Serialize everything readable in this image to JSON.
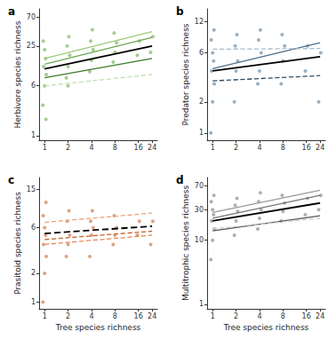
{
  "chart_data": [
    {
      "type": "scatter",
      "title": "a",
      "ylabel": "Herbivore species richness",
      "log": true,
      "grid": false,
      "xlim": [
        0.85,
        28
      ],
      "xticks": [
        1,
        2,
        4,
        8,
        16,
        24
      ],
      "ylim": [
        0.85,
        95
      ],
      "yticks": [
        1,
        6,
        25,
        70
      ],
      "series": [
        {
          "type": "scatter",
          "marker": "circle",
          "color": "#7db75e",
          "x": [
            0.95,
            1,
            1.05,
            0.97,
            1.03,
            1,
            0.96,
            1.04,
            1.9,
            2,
            2.1,
            1.95,
            2.05,
            2,
            3.8,
            4,
            4.2,
            3.9,
            4.1,
            7.6,
            8,
            8.4,
            7.8,
            15.5,
            16.5,
            23,
            24.5
          ],
          "values": [
            3,
            6,
            9,
            12,
            16,
            22,
            30,
            1.8,
            8,
            12,
            18,
            25,
            35,
            6,
            10,
            15,
            22,
            30,
            45,
            14,
            20,
            28,
            40,
            18,
            30,
            20,
            35
          ]
        },
        {
          "type": "line",
          "line_style": "solid",
          "color": "#9acd78",
          "x": [
            1,
            24
          ],
          "values": [
            16,
            42
          ]
        },
        {
          "type": "line",
          "line_style": "solid",
          "color": "#6aa84f",
          "x": [
            1,
            24
          ],
          "values": [
            13,
            34
          ]
        },
        {
          "type": "line",
          "line_style": "solid",
          "color": "#3d7a2b",
          "x": [
            1,
            24
          ],
          "values": [
            8,
            16
          ]
        },
        {
          "type": "line",
          "line_style": "dashed",
          "color": "#c3dfae",
          "x": [
            1,
            24
          ],
          "values": [
            6,
            9
          ]
        },
        {
          "type": "line",
          "line_style": "solid",
          "color": "#000000",
          "x": [
            1,
            24
          ],
          "values": [
            11,
            25
          ]
        }
      ]
    },
    {
      "type": "scatter",
      "title": "b",
      "ylabel": "Predator species richness",
      "log": true,
      "grid": false,
      "xlim": [
        0.85,
        28
      ],
      "xticks": [
        1,
        2,
        4,
        8,
        16,
        24
      ],
      "ylim": [
        0.85,
        16
      ],
      "yticks": [
        1,
        2,
        6,
        12
      ],
      "series": [
        {
          "type": "scatter",
          "marker": "circle",
          "color": "#6f8fa9",
          "x": [
            0.95,
            1,
            1.05,
            0.97,
            1.03,
            1,
            0.96,
            1.04,
            1.9,
            2,
            2.1,
            1.95,
            2.05,
            3.8,
            4,
            4.2,
            3.9,
            4.1,
            7.6,
            8,
            8.4,
            7.8,
            15.5,
            16.5,
            23,
            24.5
          ],
          "values": [
            1,
            2,
            3,
            4,
            5,
            6,
            8,
            10,
            2,
            4,
            5,
            7,
            9,
            3,
            4,
            6,
            8,
            10,
            3,
            5,
            7,
            9,
            4,
            7,
            2,
            6
          ]
        },
        {
          "type": "line",
          "line_style": "solid",
          "color": "#4f6f8a",
          "x": [
            1,
            24
          ],
          "values": [
            4.2,
            7.5
          ]
        },
        {
          "type": "line",
          "line_style": "dashed",
          "color": "#a9bccc",
          "x": [
            1,
            24
          ],
          "values": [
            6.5,
            6.6
          ]
        },
        {
          "type": "line",
          "line_style": "dashed",
          "color": "#2e4d66",
          "x": [
            1,
            24
          ],
          "values": [
            3.2,
            3.6
          ]
        },
        {
          "type": "line",
          "line_style": "solid",
          "color": "#000000",
          "x": [
            1,
            24
          ],
          "values": [
            4,
            5.5
          ]
        }
      ]
    },
    {
      "type": "scatter",
      "title": "c",
      "ylabel": "Prasitoid species richness",
      "xlabel": "Tree species richness",
      "log": true,
      "grid": false,
      "xlim": [
        0.85,
        28
      ],
      "xticks": [
        1,
        2,
        4,
        8,
        16,
        24
      ],
      "ylim": [
        0.85,
        20
      ],
      "yticks": [
        1,
        2,
        6,
        15
      ],
      "series": [
        {
          "type": "scatter",
          "marker": "circle",
          "color": "#d07a4a",
          "x": [
            0.95,
            1,
            1.05,
            0.97,
            1.03,
            1,
            0.96,
            1.04,
            1.9,
            2,
            2.1,
            1.95,
            2.05,
            3.8,
            4,
            4.2,
            3.9,
            4.1,
            7.6,
            8,
            8.4,
            7.8,
            15.5,
            16.5,
            23,
            24.5
          ],
          "values": [
            1,
            2,
            3,
            4,
            5,
            6,
            8,
            11,
            3,
            4,
            5,
            7,
            9,
            3,
            5,
            6,
            7,
            9,
            4,
            5,
            6,
            8,
            5,
            7,
            4,
            7
          ]
        },
        {
          "type": "line",
          "line_style": "dashed",
          "color": "#eba57e",
          "x": [
            1,
            24
          ],
          "values": [
            6.8,
            8.5
          ]
        },
        {
          "type": "line",
          "line_style": "dashed",
          "color": "#c0642f",
          "x": [
            1,
            24
          ],
          "values": [
            4.5,
            5.5
          ]
        },
        {
          "type": "line",
          "line_style": "dashed",
          "color": "#e08a5a",
          "x": [
            1,
            24
          ],
          "values": [
            4,
            5
          ]
        },
        {
          "type": "line",
          "line_style": "dashed",
          "color": "#000000",
          "x": [
            1,
            24
          ],
          "values": [
            5.2,
            6.2
          ]
        }
      ]
    },
    {
      "type": "scatter",
      "title": "d",
      "ylabel": "Multitrophic species richness",
      "xlabel": "Tree species richness",
      "log": true,
      "grid": false,
      "xlim": [
        0.85,
        28
      ],
      "xticks": [
        1,
        2,
        4,
        8,
        16,
        24
      ],
      "ylim": [
        0.85,
        95
      ],
      "yticks": [
        1,
        10,
        30,
        70
      ],
      "series": [
        {
          "type": "scatter",
          "marker": "circle",
          "color": "#8c8c8c",
          "x": [
            0.95,
            1,
            1.05,
            0.97,
            1.03,
            1,
            0.96,
            1.04,
            1.9,
            2,
            2.1,
            1.95,
            2.05,
            3.8,
            4,
            4.2,
            3.9,
            4.1,
            7.6,
            8,
            8.4,
            7.8,
            15.5,
            16.5,
            23,
            24.5
          ],
          "values": [
            5,
            10,
            15,
            20,
            25,
            30,
            40,
            50,
            12,
            20,
            28,
            35,
            45,
            15,
            22,
            30,
            40,
            55,
            20,
            28,
            38,
            50,
            25,
            45,
            30,
            50
          ]
        },
        {
          "type": "line",
          "line_style": "solid",
          "color": "#9a9a9a",
          "x": [
            1,
            24
          ],
          "values": [
            27,
            60
          ]
        },
        {
          "type": "line",
          "line_style": "solid",
          "color": "#777777",
          "x": [
            1,
            24
          ],
          "values": [
            22,
            50
          ]
        },
        {
          "type": "line",
          "line_style": "solid",
          "color": "#555555",
          "x": [
            1,
            24
          ],
          "values": [
            14,
            24
          ]
        },
        {
          "type": "line",
          "line_style": "dashed",
          "color": "#c8c8c8",
          "x": [
            1,
            24
          ],
          "values": [
            15,
            22
          ]
        },
        {
          "type": "line",
          "line_style": "solid",
          "color": "#000000",
          "x": [
            1,
            24
          ],
          "values": [
            20,
            38
          ]
        }
      ]
    }
  ]
}
